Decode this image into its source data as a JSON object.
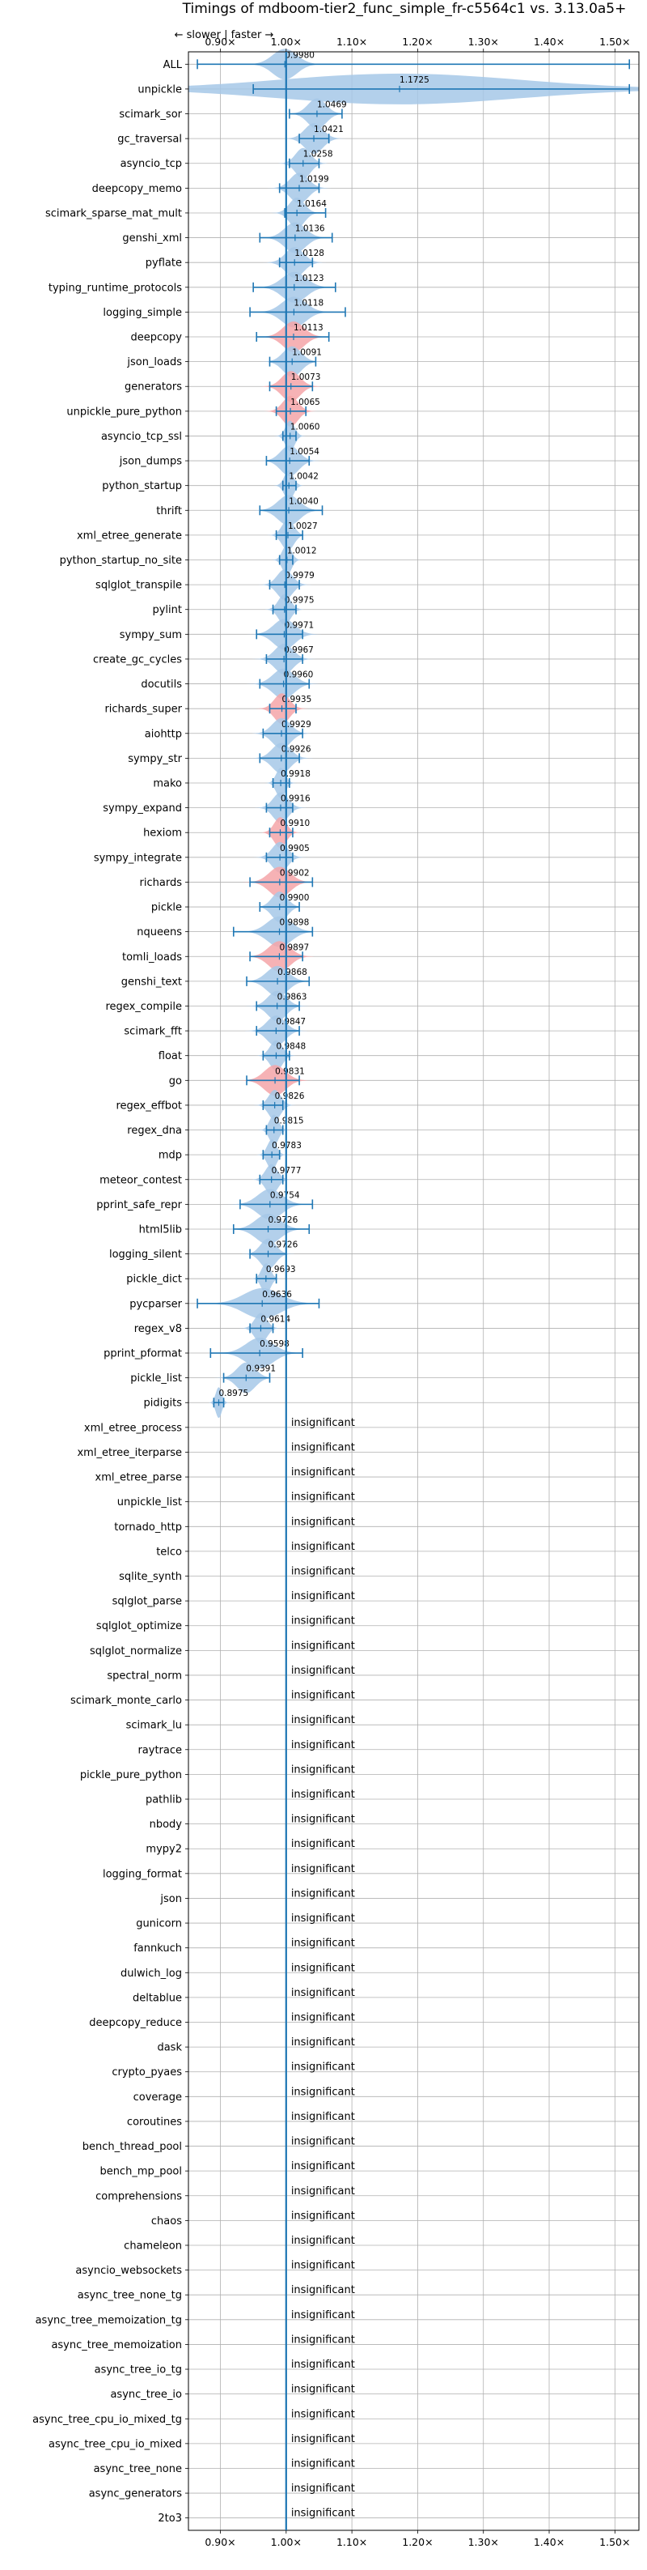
{
  "chart_data": {
    "type": "violin",
    "title": "Timings of mdboom-tier2_func_simple_fr-c5564c1 vs. 3.13.0a5+",
    "direction_label": "← slower | faster →",
    "xticks": [
      "0.90×",
      "1.00×",
      "1.10×",
      "1.20×",
      "1.30×",
      "1.40×",
      "1.50×"
    ],
    "xtick_values": [
      0.9,
      1.0,
      1.1,
      1.2,
      1.3,
      1.4,
      1.5
    ],
    "xlim": [
      0.8514,
      1.5365
    ],
    "reference_line": 1.0,
    "grid": true,
    "insignificant_label": "insignificant",
    "colors": {
      "neutral": "#a6c8e8",
      "slower": "#f4a4a8",
      "line": "#1f77b4"
    },
    "rows": [
      {
        "name": "ALL",
        "value": 0.998,
        "label": "0.9980",
        "lo": 0.865,
        "hi": 1.522,
        "w": 0.04,
        "sig": true,
        "slower": false
      },
      {
        "name": "unpickle",
        "value": 1.1725,
        "label": "1.1725",
        "lo": 0.95,
        "hi": 1.522,
        "w": 0.4,
        "sig": true,
        "slower": false
      },
      {
        "name": "scimark_sor",
        "value": 1.0469,
        "label": "1.0469",
        "lo": 1.005,
        "hi": 1.085,
        "w": 0.03,
        "sig": true,
        "slower": false
      },
      {
        "name": "gc_traversal",
        "value": 1.0421,
        "label": "1.0421",
        "lo": 1.02,
        "hi": 1.065,
        "w": 0.03,
        "sig": true,
        "slower": false
      },
      {
        "name": "asyncio_tcp",
        "value": 1.0258,
        "label": "1.0258",
        "lo": 1.005,
        "hi": 1.05,
        "w": 0.025,
        "sig": true,
        "slower": false
      },
      {
        "name": "deepcopy_memo",
        "value": 1.0199,
        "label": "1.0199",
        "lo": 0.99,
        "hi": 1.05,
        "w": 0.03,
        "sig": true,
        "slower": false
      },
      {
        "name": "scimark_sparse_mat_mult",
        "value": 1.0164,
        "label": "1.0164",
        "lo": 0.998,
        "hi": 1.06,
        "w": 0.025,
        "sig": true,
        "slower": false
      },
      {
        "name": "genshi_xml",
        "value": 1.0136,
        "label": "1.0136",
        "lo": 0.96,
        "hi": 1.07,
        "w": 0.035,
        "sig": true,
        "slower": false
      },
      {
        "name": "pyflate",
        "value": 1.0128,
        "label": "1.0128",
        "lo": 0.99,
        "hi": 1.04,
        "w": 0.03,
        "sig": true,
        "slower": false
      },
      {
        "name": "typing_runtime_protocols",
        "value": 1.0123,
        "label": "1.0123",
        "lo": 0.95,
        "hi": 1.075,
        "w": 0.04,
        "sig": true,
        "slower": false
      },
      {
        "name": "logging_simple",
        "value": 1.0118,
        "label": "1.0118",
        "lo": 0.945,
        "hi": 1.09,
        "w": 0.04,
        "sig": true,
        "slower": false
      },
      {
        "name": "deepcopy",
        "value": 1.0113,
        "label": "1.0113",
        "lo": 0.955,
        "hi": 1.065,
        "w": 0.035,
        "sig": true,
        "slower": true
      },
      {
        "name": "json_loads",
        "value": 1.0091,
        "label": "1.0091",
        "lo": 0.975,
        "hi": 1.045,
        "w": 0.03,
        "sig": true,
        "slower": false
      },
      {
        "name": "generators",
        "value": 1.0073,
        "label": "1.0073",
        "lo": 0.975,
        "hi": 1.04,
        "w": 0.03,
        "sig": true,
        "slower": true
      },
      {
        "name": "unpickle_pure_python",
        "value": 1.0065,
        "label": "1.0065",
        "lo": 0.985,
        "hi": 1.03,
        "w": 0.025,
        "sig": true,
        "slower": true
      },
      {
        "name": "asyncio_tcp_ssl",
        "value": 1.006,
        "label": "1.0060",
        "lo": 0.995,
        "hi": 1.015,
        "w": 0.015,
        "sig": true,
        "slower": false
      },
      {
        "name": "json_dumps",
        "value": 1.0054,
        "label": "1.0054",
        "lo": 0.97,
        "hi": 1.035,
        "w": 0.03,
        "sig": true,
        "slower": false
      },
      {
        "name": "python_startup",
        "value": 1.0042,
        "label": "1.0042",
        "lo": 0.995,
        "hi": 1.015,
        "w": 0.015,
        "sig": true,
        "slower": false
      },
      {
        "name": "thrift",
        "value": 1.004,
        "label": "1.0040",
        "lo": 0.96,
        "hi": 1.055,
        "w": 0.035,
        "sig": true,
        "slower": false
      },
      {
        "name": "xml_etree_generate",
        "value": 1.0027,
        "label": "1.0027",
        "lo": 0.985,
        "hi": 1.025,
        "w": 0.02,
        "sig": true,
        "slower": false
      },
      {
        "name": "python_startup_no_site",
        "value": 1.0012,
        "label": "1.0012",
        "lo": 0.99,
        "hi": 1.01,
        "w": 0.015,
        "sig": true,
        "slower": false
      },
      {
        "name": "sqlglot_transpile",
        "value": 0.9979,
        "label": "0.9979",
        "lo": 0.975,
        "hi": 1.02,
        "w": 0.025,
        "sig": true,
        "slower": false
      },
      {
        "name": "pylint",
        "value": 0.9975,
        "label": "0.9975",
        "lo": 0.98,
        "hi": 1.015,
        "w": 0.02,
        "sig": true,
        "slower": false
      },
      {
        "name": "sympy_sum",
        "value": 0.9971,
        "label": "0.9971",
        "lo": 0.955,
        "hi": 1.025,
        "w": 0.035,
        "sig": true,
        "slower": false
      },
      {
        "name": "create_gc_cycles",
        "value": 0.9967,
        "label": "0.9967",
        "lo": 0.97,
        "hi": 1.025,
        "w": 0.03,
        "sig": true,
        "slower": false
      },
      {
        "name": "docutils",
        "value": 0.996,
        "label": "0.9960",
        "lo": 0.96,
        "hi": 1.035,
        "w": 0.035,
        "sig": true,
        "slower": false
      },
      {
        "name": "richards_super",
        "value": 0.9935,
        "label": "0.9935",
        "lo": 0.975,
        "hi": 1.015,
        "w": 0.025,
        "sig": true,
        "slower": true
      },
      {
        "name": "aiohttp",
        "value": 0.9929,
        "label": "0.9929",
        "lo": 0.965,
        "hi": 1.025,
        "w": 0.03,
        "sig": true,
        "slower": false
      },
      {
        "name": "sympy_str",
        "value": 0.9926,
        "label": "0.9926",
        "lo": 0.96,
        "hi": 1.02,
        "w": 0.03,
        "sig": true,
        "slower": false
      },
      {
        "name": "mako",
        "value": 0.9918,
        "label": "0.9918",
        "lo": 0.98,
        "hi": 1.005,
        "w": 0.015,
        "sig": true,
        "slower": false
      },
      {
        "name": "sympy_expand",
        "value": 0.9916,
        "label": "0.9916",
        "lo": 0.97,
        "hi": 1.01,
        "w": 0.025,
        "sig": true,
        "slower": false
      },
      {
        "name": "hexiom",
        "value": 0.991,
        "label": "0.9910",
        "lo": 0.975,
        "hi": 1.01,
        "w": 0.02,
        "sig": true,
        "slower": true
      },
      {
        "name": "sympy_integrate",
        "value": 0.9905,
        "label": "0.9905",
        "lo": 0.97,
        "hi": 1.01,
        "w": 0.025,
        "sig": true,
        "slower": false
      },
      {
        "name": "richards",
        "value": 0.9902,
        "label": "0.9902",
        "lo": 0.945,
        "hi": 1.04,
        "w": 0.035,
        "sig": true,
        "slower": true
      },
      {
        "name": "pickle",
        "value": 0.99,
        "label": "0.9900",
        "lo": 0.96,
        "hi": 1.02,
        "w": 0.025,
        "sig": true,
        "slower": false
      },
      {
        "name": "nqueens",
        "value": 0.9898,
        "label": "0.9898",
        "lo": 0.92,
        "hi": 1.04,
        "w": 0.04,
        "sig": true,
        "slower": false
      },
      {
        "name": "tomli_loads",
        "value": 0.9897,
        "label": "0.9897",
        "lo": 0.945,
        "hi": 1.025,
        "w": 0.035,
        "sig": true,
        "slower": true
      },
      {
        "name": "genshi_text",
        "value": 0.9868,
        "label": "0.9868",
        "lo": 0.94,
        "hi": 1.035,
        "w": 0.035,
        "sig": true,
        "slower": false
      },
      {
        "name": "regex_compile",
        "value": 0.9863,
        "label": "0.9863",
        "lo": 0.955,
        "hi": 1.02,
        "w": 0.03,
        "sig": true,
        "slower": false
      },
      {
        "name": "scimark_fft",
        "value": 0.9847,
        "label": "0.9847",
        "lo": 0.955,
        "hi": 1.02,
        "w": 0.03,
        "sig": true,
        "slower": false
      },
      {
        "name": "float",
        "value": 0.9848,
        "label": "0.9848",
        "lo": 0.965,
        "hi": 1.005,
        "w": 0.02,
        "sig": true,
        "slower": false
      },
      {
        "name": "go",
        "value": 0.9831,
        "label": "0.9831",
        "lo": 0.94,
        "hi": 1.02,
        "w": 0.035,
        "sig": true,
        "slower": true
      },
      {
        "name": "regex_effbot",
        "value": 0.9826,
        "label": "0.9826",
        "lo": 0.965,
        "hi": 0.995,
        "w": 0.02,
        "sig": true,
        "slower": false
      },
      {
        "name": "regex_dna",
        "value": 0.9815,
        "label": "0.9815",
        "lo": 0.97,
        "hi": 0.995,
        "w": 0.015,
        "sig": true,
        "slower": false
      },
      {
        "name": "mdp",
        "value": 0.9783,
        "label": "0.9783",
        "lo": 0.965,
        "hi": 0.99,
        "w": 0.015,
        "sig": true,
        "slower": false
      },
      {
        "name": "meteor_contest",
        "value": 0.9777,
        "label": "0.9777",
        "lo": 0.96,
        "hi": 0.995,
        "w": 0.02,
        "sig": true,
        "slower": false
      },
      {
        "name": "pprint_safe_repr",
        "value": 0.9754,
        "label": "0.9754",
        "lo": 0.93,
        "hi": 1.04,
        "w": 0.04,
        "sig": true,
        "slower": false
      },
      {
        "name": "html5lib",
        "value": 0.9726,
        "label": "0.9726",
        "lo": 0.92,
        "hi": 1.035,
        "w": 0.04,
        "sig": true,
        "slower": false
      },
      {
        "name": "logging_silent",
        "value": 0.9726,
        "label": "0.9726",
        "lo": 0.945,
        "hi": 1.0,
        "w": 0.025,
        "sig": true,
        "slower": false
      },
      {
        "name": "pickle_dict",
        "value": 0.9693,
        "label": "0.9693",
        "lo": 0.955,
        "hi": 0.985,
        "w": 0.015,
        "sig": true,
        "slower": false
      },
      {
        "name": "pycparser",
        "value": 0.9636,
        "label": "0.9636",
        "lo": 0.865,
        "hi": 1.05,
        "w": 0.06,
        "sig": true,
        "slower": false
      },
      {
        "name": "regex_v8",
        "value": 0.9614,
        "label": "0.9614",
        "lo": 0.945,
        "hi": 0.98,
        "w": 0.02,
        "sig": true,
        "slower": false
      },
      {
        "name": "pprint_pformat",
        "value": 0.9598,
        "label": "0.9598",
        "lo": 0.885,
        "hi": 1.025,
        "w": 0.045,
        "sig": true,
        "slower": false
      },
      {
        "name": "pickle_list",
        "value": 0.9391,
        "label": "0.9391",
        "lo": 0.905,
        "hi": 0.975,
        "w": 0.03,
        "sig": true,
        "slower": false
      },
      {
        "name": "pidigits",
        "value": 0.8975,
        "label": "0.8975",
        "lo": 0.89,
        "hi": 0.905,
        "w": 0.01,
        "sig": true,
        "slower": false
      },
      {
        "name": "xml_etree_process",
        "sig": false
      },
      {
        "name": "xml_etree_iterparse",
        "sig": false
      },
      {
        "name": "xml_etree_parse",
        "sig": false
      },
      {
        "name": "unpickle_list",
        "sig": false
      },
      {
        "name": "tornado_http",
        "sig": false
      },
      {
        "name": "telco",
        "sig": false
      },
      {
        "name": "sqlite_synth",
        "sig": false
      },
      {
        "name": "sqlglot_parse",
        "sig": false
      },
      {
        "name": "sqlglot_optimize",
        "sig": false
      },
      {
        "name": "sqlglot_normalize",
        "sig": false
      },
      {
        "name": "spectral_norm",
        "sig": false
      },
      {
        "name": "scimark_monte_carlo",
        "sig": false
      },
      {
        "name": "scimark_lu",
        "sig": false
      },
      {
        "name": "raytrace",
        "sig": false
      },
      {
        "name": "pickle_pure_python",
        "sig": false
      },
      {
        "name": "pathlib",
        "sig": false
      },
      {
        "name": "nbody",
        "sig": false
      },
      {
        "name": "mypy2",
        "sig": false
      },
      {
        "name": "logging_format",
        "sig": false
      },
      {
        "name": "json",
        "sig": false
      },
      {
        "name": "gunicorn",
        "sig": false
      },
      {
        "name": "fannkuch",
        "sig": false
      },
      {
        "name": "dulwich_log",
        "sig": false
      },
      {
        "name": "deltablue",
        "sig": false
      },
      {
        "name": "deepcopy_reduce",
        "sig": false
      },
      {
        "name": "dask",
        "sig": false
      },
      {
        "name": "crypto_pyaes",
        "sig": false
      },
      {
        "name": "coverage",
        "sig": false
      },
      {
        "name": "coroutines",
        "sig": false
      },
      {
        "name": "bench_thread_pool",
        "sig": false
      },
      {
        "name": "bench_mp_pool",
        "sig": false
      },
      {
        "name": "comprehensions",
        "sig": false
      },
      {
        "name": "chaos",
        "sig": false
      },
      {
        "name": "chameleon",
        "sig": false
      },
      {
        "name": "asyncio_websockets",
        "sig": false
      },
      {
        "name": "async_tree_none_tg",
        "sig": false
      },
      {
        "name": "async_tree_memoization_tg",
        "sig": false
      },
      {
        "name": "async_tree_memoization",
        "sig": false
      },
      {
        "name": "async_tree_io_tg",
        "sig": false
      },
      {
        "name": "async_tree_io",
        "sig": false
      },
      {
        "name": "async_tree_cpu_io_mixed_tg",
        "sig": false
      },
      {
        "name": "async_tree_cpu_io_mixed",
        "sig": false
      },
      {
        "name": "async_tree_none",
        "sig": false
      },
      {
        "name": "async_generators",
        "sig": false
      },
      {
        "name": "2to3",
        "sig": false
      }
    ]
  }
}
